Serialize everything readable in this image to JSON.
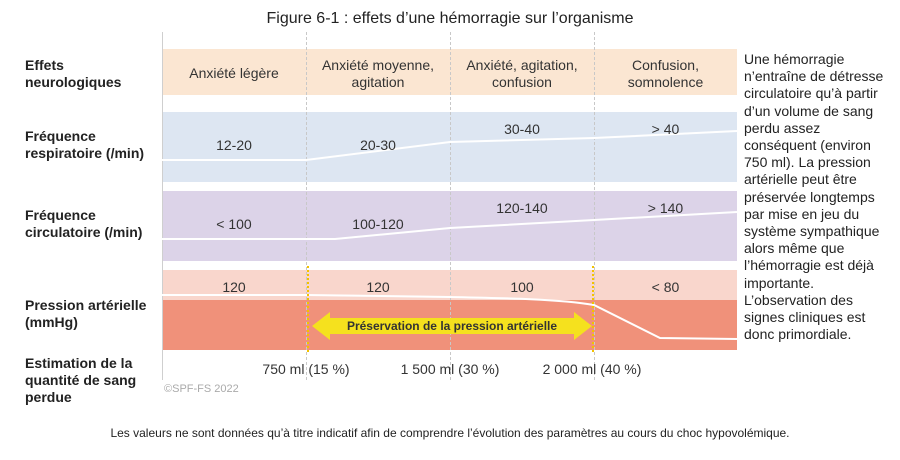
{
  "title": "Figure 6-1 : effets d’une hémorragie sur l’organisme",
  "rows": {
    "neuro": "Effets\nneurologiques",
    "resp": "Fréquence\nrespiratoire (/min)",
    "circ": "Fréquence\ncirculatoire (/min)",
    "pa": "Pression artérielle\n(mmHg)",
    "sang": "Estimation de la\nquantité de sang\nperdue"
  },
  "chart_data": {
    "type": "table",
    "stages": [
      {
        "neuro": "Anxiété légère",
        "resp": "12-20",
        "circ": "< 100",
        "pa": "120"
      },
      {
        "neuro": "Anxiété moyenne,\nagitation",
        "resp": "20-30",
        "circ": "100-120",
        "pa": "120"
      },
      {
        "neuro": "Anxiété, agitation,\nconfusion",
        "resp": "30-40",
        "circ": "120-140",
        "pa": "100"
      },
      {
        "neuro": "Confusion,\nsomnolence",
        "resp": "> 40",
        "circ": "> 140",
        "pa": "< 80"
      }
    ],
    "blood_loss": [
      "750 ml (15 %)",
      "1 500 ml (30 %)",
      "2 000 ml (40 %)"
    ],
    "preservation_label": "Préservation de la pression artérielle"
  },
  "side_text": "Une hémorragie n’entraîne de détresse circulatoire qu’à partir d’un volume de sang perdu assez conséquent (environ 750 ml). La pression artérielle peut être préservée longtemps par mise en jeu du système sympathique alors même que l’hémorragie est déjà importante. L’observation des signes cliniques est donc primordiale.",
  "copyright": "©SPF-FS 2022",
  "footer": "Les valeurs ne sont données qu’à titre indicatif afin de comprendre l’évolution des paramètres au cours du choc hypovolémique.",
  "colors": {
    "neuro_band": "#fbe6d2",
    "resp_band": "#dde6f2",
    "circ_band": "#dcd3e8",
    "pa_band_light": "#f9d6cc",
    "pa_band_dark": "#f0917a",
    "arrow": "#f5e11e",
    "dotted": "#f2c200"
  }
}
